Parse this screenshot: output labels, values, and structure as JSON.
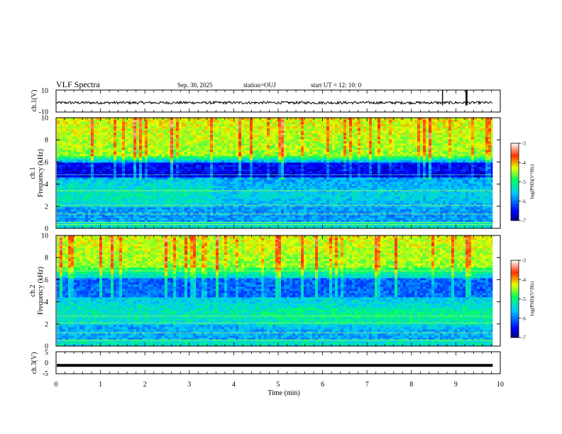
{
  "header": {
    "title": "VLF Spectra",
    "date": "Sep. 30, 2025",
    "station": "station=OUJ",
    "start": "start  UT =   12: 10: 0"
  },
  "chart_data": [
    {
      "id": "waveform-ch1",
      "type": "line",
      "ylabel": "ch.1(V)",
      "ylim": [
        -10,
        10
      ],
      "ytick_labels": [
        "10",
        "-10"
      ],
      "baseline": -1.5,
      "spikes_x": [
        8.7,
        9.23,
        9.25
      ]
    },
    {
      "id": "spectrogram-ch1",
      "type": "heatmap",
      "ylabel": "Frequency (kHz)",
      "channel_label": "ch.1",
      "ylim": [
        0,
        10
      ],
      "ytick_labels": [
        "0",
        "2",
        "4",
        "6",
        "8",
        "10"
      ],
      "colorbar": {
        "label": "log(PSD)(V²/Hz)",
        "range": [
          -7,
          -3
        ],
        "tick_labels": [
          "-3",
          "-4",
          "-5",
          "-6",
          "-7"
        ]
      }
    },
    {
      "id": "spectrogram-ch2",
      "type": "heatmap",
      "ylabel": "Frequency (kHz)",
      "channel_label": "ch.2",
      "ylim": [
        0,
        10
      ],
      "ytick_labels": [
        "0",
        "2",
        "4",
        "6",
        "8",
        "10"
      ],
      "colorbar": {
        "label": "log(PSD)(V²/Hz)",
        "range": [
          -7,
          -3
        ],
        "tick_labels": [
          "-3",
          "-4",
          "-5",
          "-6",
          "-7"
        ]
      }
    },
    {
      "id": "waveform-ch3",
      "type": "line",
      "ylabel": "ch.3(V)",
      "ylim": [
        -5,
        5
      ],
      "ytick_labels": [
        "5",
        "0",
        "-5"
      ],
      "baseline": -1.2
    }
  ],
  "xaxis": {
    "label": "Time (min)",
    "xlim": [
      0,
      10
    ],
    "data_end": 9.83,
    "tick_labels": [
      "0",
      "1",
      "2",
      "3",
      "4",
      "5",
      "6",
      "7",
      "8",
      "9",
      "10"
    ]
  }
}
